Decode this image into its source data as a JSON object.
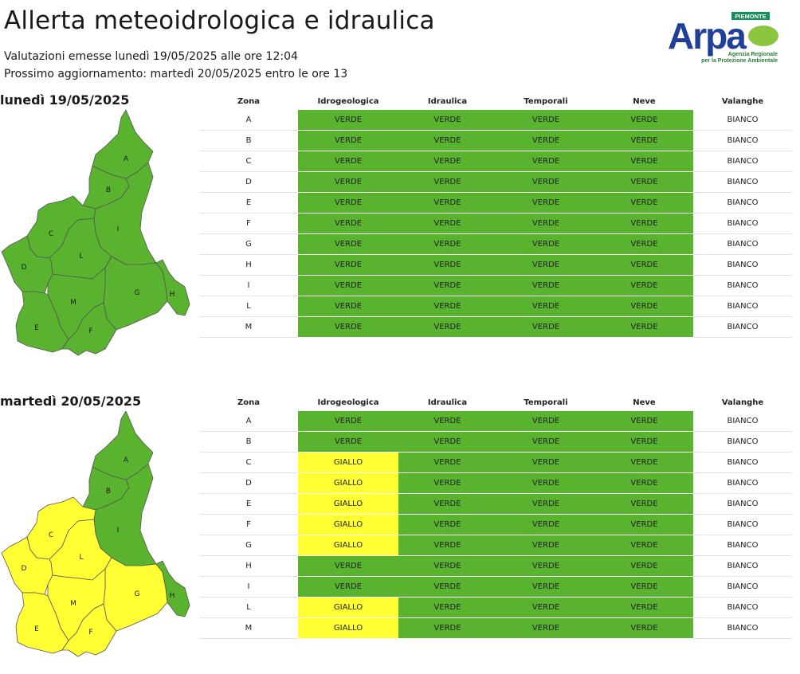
{
  "header": {
    "title": "Allerta meteoidrologica e idraulica",
    "issued": "Valutazioni emesse lunedì 19/05/2025 alle ore 12:04",
    "next_update": "Prossimo aggiornamento: martedì 20/05/2025 entro le ore 13"
  },
  "logo": {
    "region": "PIEMONTE",
    "name": "Arpa",
    "line1": "Agenzia Regionale",
    "line2": "per la Protezione Ambientale"
  },
  "colors": {
    "VERDE": "#59b32f",
    "GIALLO": "#ffff33",
    "BIANCO": "#ffffff"
  },
  "columns": [
    "Zona",
    "Idrogeologica",
    "Idraulica",
    "Temporali",
    "Neve",
    "Valanghe"
  ],
  "zone_labels": [
    "A",
    "B",
    "C",
    "D",
    "E",
    "F",
    "G",
    "H",
    "I",
    "L",
    "M"
  ],
  "days": [
    {
      "title": "lunedì 19/05/2025",
      "rows": [
        {
          "zona": "A",
          "idrogeologica": "VERDE",
          "idraulica": "VERDE",
          "temporali": "VERDE",
          "neve": "VERDE",
          "valanghe": "BIANCO"
        },
        {
          "zona": "B",
          "idrogeologica": "VERDE",
          "idraulica": "VERDE",
          "temporali": "VERDE",
          "neve": "VERDE",
          "valanghe": "BIANCO"
        },
        {
          "zona": "C",
          "idrogeologica": "VERDE",
          "idraulica": "VERDE",
          "temporali": "VERDE",
          "neve": "VERDE",
          "valanghe": "BIANCO"
        },
        {
          "zona": "D",
          "idrogeologica": "VERDE",
          "idraulica": "VERDE",
          "temporali": "VERDE",
          "neve": "VERDE",
          "valanghe": "BIANCO"
        },
        {
          "zona": "E",
          "idrogeologica": "VERDE",
          "idraulica": "VERDE",
          "temporali": "VERDE",
          "neve": "VERDE",
          "valanghe": "BIANCO"
        },
        {
          "zona": "F",
          "idrogeologica": "VERDE",
          "idraulica": "VERDE",
          "temporali": "VERDE",
          "neve": "VERDE",
          "valanghe": "BIANCO"
        },
        {
          "zona": "G",
          "idrogeologica": "VERDE",
          "idraulica": "VERDE",
          "temporali": "VERDE",
          "neve": "VERDE",
          "valanghe": "BIANCO"
        },
        {
          "zona": "H",
          "idrogeologica": "VERDE",
          "idraulica": "VERDE",
          "temporali": "VERDE",
          "neve": "VERDE",
          "valanghe": "BIANCO"
        },
        {
          "zona": "I",
          "idrogeologica": "VERDE",
          "idraulica": "VERDE",
          "temporali": "VERDE",
          "neve": "VERDE",
          "valanghe": "BIANCO"
        },
        {
          "zona": "L",
          "idrogeologica": "VERDE",
          "idraulica": "VERDE",
          "temporali": "VERDE",
          "neve": "VERDE",
          "valanghe": "BIANCO"
        },
        {
          "zona": "M",
          "idrogeologica": "VERDE",
          "idraulica": "VERDE",
          "temporali": "VERDE",
          "neve": "VERDE",
          "valanghe": "BIANCO"
        }
      ]
    },
    {
      "title": "martedì 20/05/2025",
      "rows": [
        {
          "zona": "A",
          "idrogeologica": "VERDE",
          "idraulica": "VERDE",
          "temporali": "VERDE",
          "neve": "VERDE",
          "valanghe": "BIANCO"
        },
        {
          "zona": "B",
          "idrogeologica": "VERDE",
          "idraulica": "VERDE",
          "temporali": "VERDE",
          "neve": "VERDE",
          "valanghe": "BIANCO"
        },
        {
          "zona": "C",
          "idrogeologica": "GIALLO",
          "idraulica": "VERDE",
          "temporali": "VERDE",
          "neve": "VERDE",
          "valanghe": "BIANCO"
        },
        {
          "zona": "D",
          "idrogeologica": "GIALLO",
          "idraulica": "VERDE",
          "temporali": "VERDE",
          "neve": "VERDE",
          "valanghe": "BIANCO"
        },
        {
          "zona": "E",
          "idrogeologica": "GIALLO",
          "idraulica": "VERDE",
          "temporali": "VERDE",
          "neve": "VERDE",
          "valanghe": "BIANCO"
        },
        {
          "zona": "F",
          "idrogeologica": "GIALLO",
          "idraulica": "VERDE",
          "temporali": "VERDE",
          "neve": "VERDE",
          "valanghe": "BIANCO"
        },
        {
          "zona": "G",
          "idrogeologica": "GIALLO",
          "idraulica": "VERDE",
          "temporali": "VERDE",
          "neve": "VERDE",
          "valanghe": "BIANCO"
        },
        {
          "zona": "H",
          "idrogeologica": "VERDE",
          "idraulica": "VERDE",
          "temporali": "VERDE",
          "neve": "VERDE",
          "valanghe": "BIANCO"
        },
        {
          "zona": "I",
          "idrogeologica": "VERDE",
          "idraulica": "VERDE",
          "temporali": "VERDE",
          "neve": "VERDE",
          "valanghe": "BIANCO"
        },
        {
          "zona": "L",
          "idrogeologica": "GIALLO",
          "idraulica": "VERDE",
          "temporali": "VERDE",
          "neve": "VERDE",
          "valanghe": "BIANCO"
        },
        {
          "zona": "M",
          "idrogeologica": "GIALLO",
          "idraulica": "VERDE",
          "temporali": "VERDE",
          "neve": "VERDE",
          "valanghe": "BIANCO"
        }
      ]
    }
  ]
}
